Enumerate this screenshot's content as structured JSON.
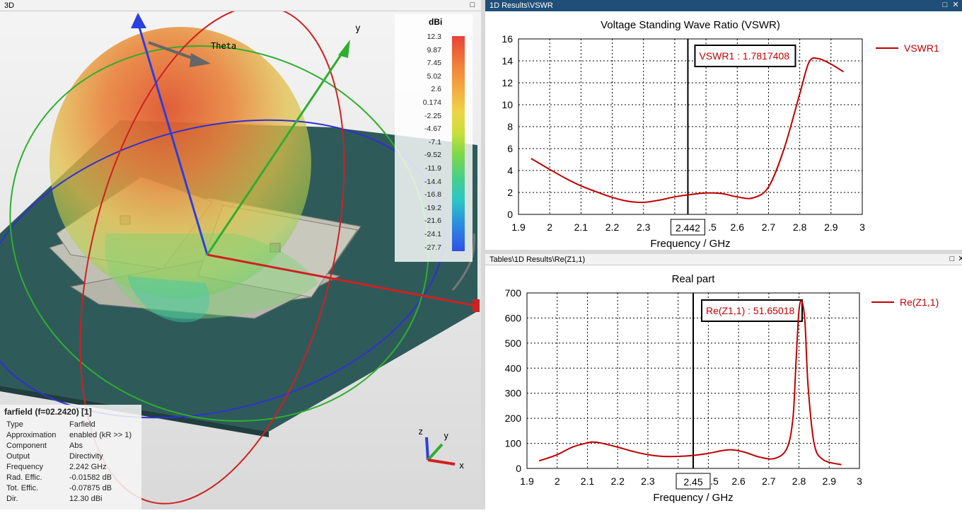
{
  "left_panel": {
    "title": "3D",
    "theta_label": "Theta",
    "y_axis_label": "y",
    "legend": {
      "unit": "dBi",
      "ticks": [
        "12.3",
        "9.87",
        "7.45",
        "5.02",
        "2.6",
        "0.174",
        "-2.25",
        "-4.67",
        "-7.1",
        "-9.52",
        "-11.9",
        "-14.4",
        "-16.8",
        "-19.2",
        "-21.6",
        "-24.1",
        "-27.7"
      ],
      "max_color": "#e8413a",
      "min_color": "#3050e6"
    },
    "triad": {
      "x": "x",
      "y": "y",
      "z": "z"
    },
    "info": {
      "title": "farfield (f=02.2420) [1]",
      "rows": [
        {
          "key": "Type",
          "value": "Farfield"
        },
        {
          "key": "Approximation",
          "value": "enabled (kR >> 1)"
        },
        {
          "key": "Component",
          "value": "Abs"
        },
        {
          "key": "Output",
          "value": "Directivity"
        },
        {
          "key": "Frequency",
          "value": "2.242 GHz"
        },
        {
          "key": "Rad. Effic.",
          "value": "-0.01582 dB"
        },
        {
          "key": "Tot. Effic.",
          "value": "-0.07875 dB"
        },
        {
          "key": "Dir.",
          "value": "12.30 dBi"
        }
      ]
    }
  },
  "vswr_panel": {
    "window_title": "1D Results\\VSWR"
  },
  "re_panel": {
    "window_title": "Tables\\1D Results\\Re(Z1,1)"
  },
  "chart_data": [
    {
      "type": "line",
      "title": "Voltage Standing Wave Ratio (VSWR)",
      "xlabel": "Frequency / GHz",
      "ylabel": "",
      "xlim": [
        1.9,
        3.0
      ],
      "ylim": [
        0,
        16
      ],
      "x_ticks": [
        "1.9",
        "2",
        "2.1",
        "2.2",
        "2.3",
        "2.442",
        ".5",
        "2.6",
        "2.7",
        "2.8",
        "2.9",
        "3"
      ],
      "y_ticks": [
        "0",
        "2",
        "4",
        "6",
        "8",
        "10",
        "12",
        "14",
        "16"
      ],
      "grid": true,
      "legend_position": "right",
      "marker": {
        "x": 2.442,
        "label": "VSWR1 : 1.7817408",
        "x_label": "2.442"
      },
      "series": [
        {
          "name": "VSWR1",
          "color": "#c00000",
          "x": [
            1.94,
            2.0,
            2.05,
            2.1,
            2.15,
            2.2,
            2.25,
            2.3,
            2.35,
            2.4,
            2.442,
            2.5,
            2.55,
            2.6,
            2.65,
            2.7,
            2.75,
            2.8,
            2.83,
            2.86,
            2.9,
            2.94
          ],
          "y": [
            5.1,
            4.1,
            3.3,
            2.6,
            2.05,
            1.55,
            1.2,
            1.1,
            1.3,
            1.6,
            1.78,
            1.95,
            1.9,
            1.6,
            1.5,
            2.5,
            6.0,
            11.0,
            13.9,
            14.2,
            13.7,
            13.0
          ]
        }
      ]
    },
    {
      "type": "line",
      "title": "Real part",
      "xlabel": "Frequency / GHz",
      "ylabel": "",
      "xlim": [
        1.9,
        3.0
      ],
      "ylim": [
        0,
        700
      ],
      "x_ticks": [
        "1.9",
        "2",
        "2.1",
        "2.2",
        "2.3",
        "2",
        "2.45",
        ".5",
        "2.6",
        "2.7",
        "2.8",
        "2.9",
        "3"
      ],
      "y_ticks": [
        "0",
        "100",
        "200",
        "300",
        "400",
        "500",
        "600",
        "700"
      ],
      "grid": true,
      "legend_position": "right",
      "marker": {
        "x": 2.45,
        "label": "Re(Z1,1) : 51.65018",
        "x_label": "2.45"
      },
      "series": [
        {
          "name": "Re(Z1,1)",
          "color": "#c00000",
          "x": [
            1.94,
            2.0,
            2.05,
            2.1,
            2.12,
            2.15,
            2.2,
            2.25,
            2.3,
            2.35,
            2.4,
            2.45,
            2.5,
            2.55,
            2.58,
            2.62,
            2.67,
            2.72,
            2.76,
            2.78,
            2.79,
            2.8,
            2.81,
            2.82,
            2.83,
            2.85,
            2.88,
            2.94
          ],
          "y": [
            30,
            55,
            85,
            102,
            105,
            100,
            85,
            68,
            55,
            48,
            48,
            52,
            60,
            72,
            74,
            65,
            45,
            40,
            80,
            200,
            420,
            630,
            665,
            580,
            330,
            100,
            35,
            15
          ]
        }
      ]
    }
  ]
}
